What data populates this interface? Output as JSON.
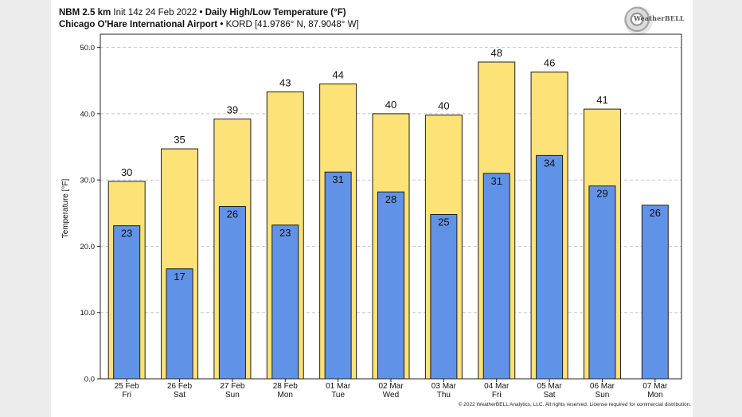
{
  "header": {
    "line1_bold1": "NBM 2.5 km",
    "line1_init": "Init 14z 24 Feb 2022",
    "line1_bold2": "Daily High/Low Temperature (°F)",
    "line2_bold": "Chicago O'Hare International Airport",
    "line2_code": "KORD [41.9786° N, 87.9048° W]",
    "bullet": "•"
  },
  "logo": {
    "text": "WeatherBELL",
    "icon": "weatherbell-swirl-logo"
  },
  "copyright": "© 2022 WeatherBELL Analytics, LLC. All rights reserved. License required for commercial distribution.",
  "colors": {
    "high": "#fce277",
    "low": "#6093e8",
    "bar_stroke": "#1e1e1e",
    "grid": "#c8c8c8",
    "text": "#111111"
  },
  "chart_data": {
    "type": "bar",
    "title": "Daily High/Low Temperature (°F)",
    "xlabel": "",
    "ylabel": "Temperature [°F]",
    "ylim": [
      0,
      52
    ],
    "yticks": [
      0,
      10,
      20,
      30,
      40,
      50
    ],
    "ytick_labels": [
      "0.0",
      "10.0",
      "20.0",
      "30.0",
      "40.0",
      "50.0"
    ],
    "grid": true,
    "categories": [
      {
        "date": "25 Feb",
        "day": "Fri"
      },
      {
        "date": "26 Feb",
        "day": "Sat"
      },
      {
        "date": "27 Feb",
        "day": "Sun"
      },
      {
        "date": "28 Feb",
        "day": "Mon"
      },
      {
        "date": "01 Mar",
        "day": "Tue"
      },
      {
        "date": "02 Mar",
        "day": "Wed"
      },
      {
        "date": "03 Mar",
        "day": "Thu"
      },
      {
        "date": "04 Mar",
        "day": "Fri"
      },
      {
        "date": "05 Mar",
        "day": "Sat"
      },
      {
        "date": "06 Mar",
        "day": "Sun"
      },
      {
        "date": "07 Mar",
        "day": "Mon"
      }
    ],
    "series": [
      {
        "name": "High",
        "values": [
          29.8,
          34.7,
          39.2,
          43.3,
          44.5,
          40.0,
          39.8,
          47.8,
          46.3,
          40.7,
          null
        ],
        "labels": [
          "30",
          "35",
          "39",
          "43",
          "44",
          "40",
          "40",
          "48",
          "46",
          "41",
          ""
        ]
      },
      {
        "name": "Low",
        "values": [
          23.1,
          16.6,
          26.0,
          23.2,
          31.2,
          28.2,
          24.8,
          31.0,
          33.7,
          29.1,
          26.2
        ],
        "labels": [
          "23",
          "17",
          "26",
          "23",
          "31",
          "28",
          "25",
          "31",
          "34",
          "29",
          "26"
        ]
      }
    ]
  }
}
